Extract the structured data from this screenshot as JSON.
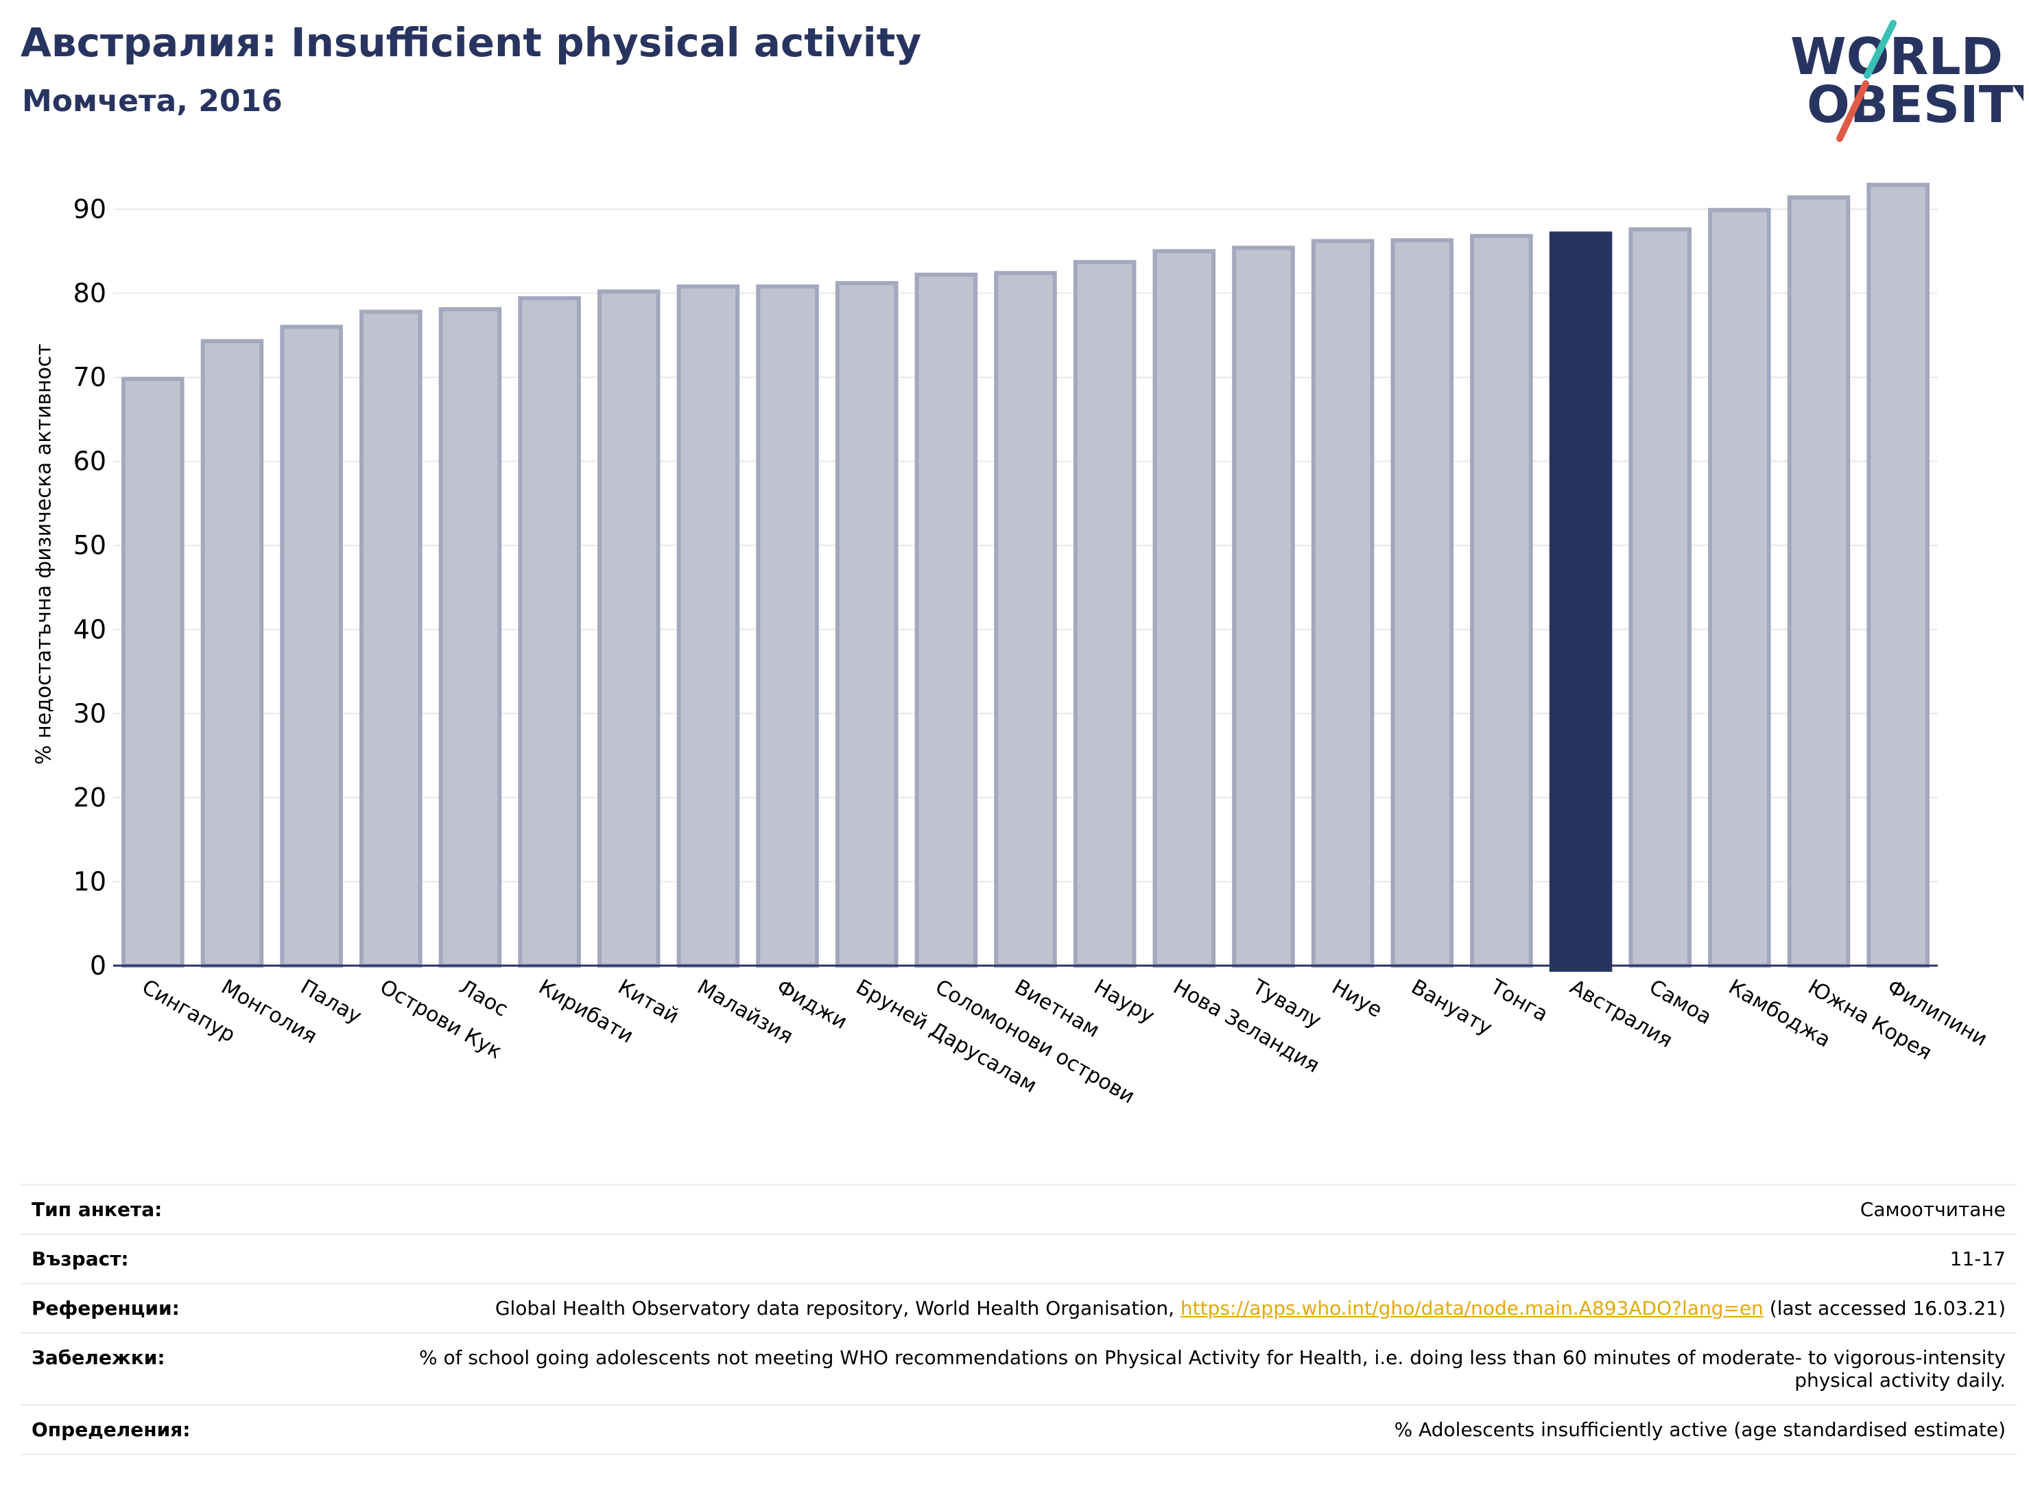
{
  "header": {
    "title": "Австралия: Insufficient physical activity",
    "subtitle": "Момчета, 2016"
  },
  "logo": {
    "line1": "WORLD",
    "line2": "OBESITY"
  },
  "colors": {
    "title": "#283460",
    "bar": "#bfc3d0",
    "bar_edge": "#a3a8bd",
    "highlight": "#283460",
    "grid": "#e8e8e8",
    "logo_teal": "#3cbfb4",
    "logo_red": "#e05b45",
    "link": "#e4a90b"
  },
  "chart_data": {
    "type": "bar",
    "ylabel": "% недостатъчна физическа активност",
    "ylim": [
      0,
      95
    ],
    "yticks": [
      0,
      10,
      20,
      30,
      40,
      50,
      60,
      70,
      80,
      90
    ],
    "grid": true,
    "highlight": "Австралия",
    "categories": [
      "Сингапур",
      "Монголия",
      "Палау",
      "Острови Кук",
      "Лаос",
      "Кирибати",
      "Китай",
      "Малайзия",
      "Фиджи",
      "Бруней Даруса­лам",
      "Соломонови острови",
      "Виетнам",
      "Науру",
      "Нова Зеландия",
      "Тувалу",
      "Ниуе",
      "Вануату",
      "Тонга",
      "Австралия",
      "Самоа",
      "Камбоджа",
      "Южна Корея",
      "Филипини"
    ],
    "values": [
      69.8,
      74.3,
      76.0,
      77.8,
      78.1,
      79.4,
      80.2,
      80.8,
      80.8,
      81.2,
      82.2,
      82.4,
      83.7,
      85.0,
      85.4,
      86.2,
      86.3,
      86.8,
      87.1,
      87.6,
      89.9,
      91.4,
      92.9
    ]
  },
  "info_table": [
    {
      "label": "Тип анкета:",
      "value": "Самоотчитане"
    },
    {
      "label": "Възраст:",
      "value": "11-17"
    },
    {
      "label": "Референции:",
      "value_pre": "Global Health Observatory data repository, World Health Organisation, ",
      "link": "https://apps.who.int/gho/data/node.main.A893ADO?lang=en",
      "value_post": " (last accessed 16.03.21)"
    },
    {
      "label": "Забележки:",
      "value": "% of school going adolescents not meeting WHO recommendations on Physical Activity for Health, i.e. doing less than 60 minutes of moderate- to vigorous-intensity physical activity daily."
    },
    {
      "label": "Определения:",
      "value": "% Adolescents insufficiently active (age standardised estimate)"
    }
  ]
}
